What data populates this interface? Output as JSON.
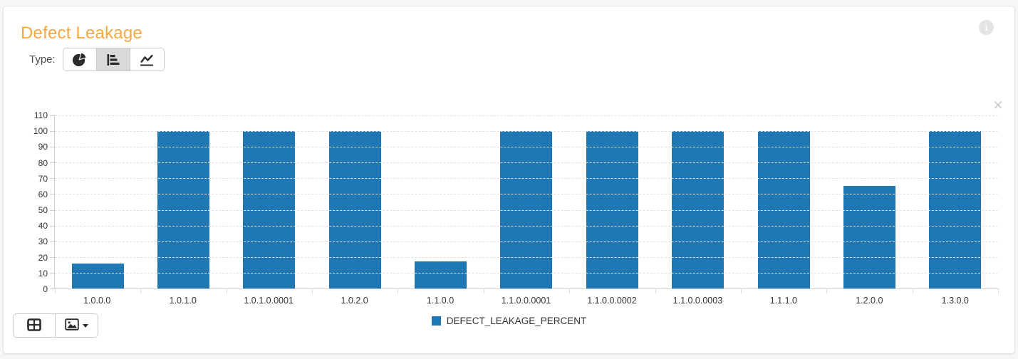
{
  "header": {
    "title": "Defect Leakage"
  },
  "type_selector": {
    "label": "Type:",
    "options": [
      {
        "name": "pie",
        "icon": "pie-chart-icon",
        "selected": false
      },
      {
        "name": "bar",
        "icon": "bar-chart-icon",
        "selected": true
      },
      {
        "name": "line",
        "icon": "line-chart-icon",
        "selected": false
      }
    ]
  },
  "chart_data": {
    "type": "bar",
    "categories": [
      "1.0.0.0",
      "1.0.1.0",
      "1.0.1.0.0001",
      "1.0.2.0",
      "1.1.0.0",
      "1.1.0.0.0001",
      "1.1.0.0.0002",
      "1.1.0.0.0003",
      "1.1.1.0",
      "1.2.0.0",
      "1.3.0.0"
    ],
    "series": [
      {
        "name": "DEFECT_LEAKAGE_PERCENT",
        "values": [
          16,
          100,
          100,
          100,
          17,
          100,
          100,
          100,
          100,
          65,
          100
        ]
      }
    ],
    "title": "",
    "xlabel": "",
    "ylabel": "",
    "ylim": [
      0,
      110
    ],
    "ytick_step": 10,
    "grid": "dashed-horizontal",
    "legend_position": "bottom",
    "bar_color": "#1f77b4"
  },
  "icons": {
    "header": "info-icon",
    "chart": "close-icon",
    "toolbar": [
      "table-icon",
      "image-export-icon",
      "caret-down-icon"
    ]
  },
  "colors": {
    "accent_orange": "#f6a83e",
    "bar_blue": "#1f77b4"
  }
}
